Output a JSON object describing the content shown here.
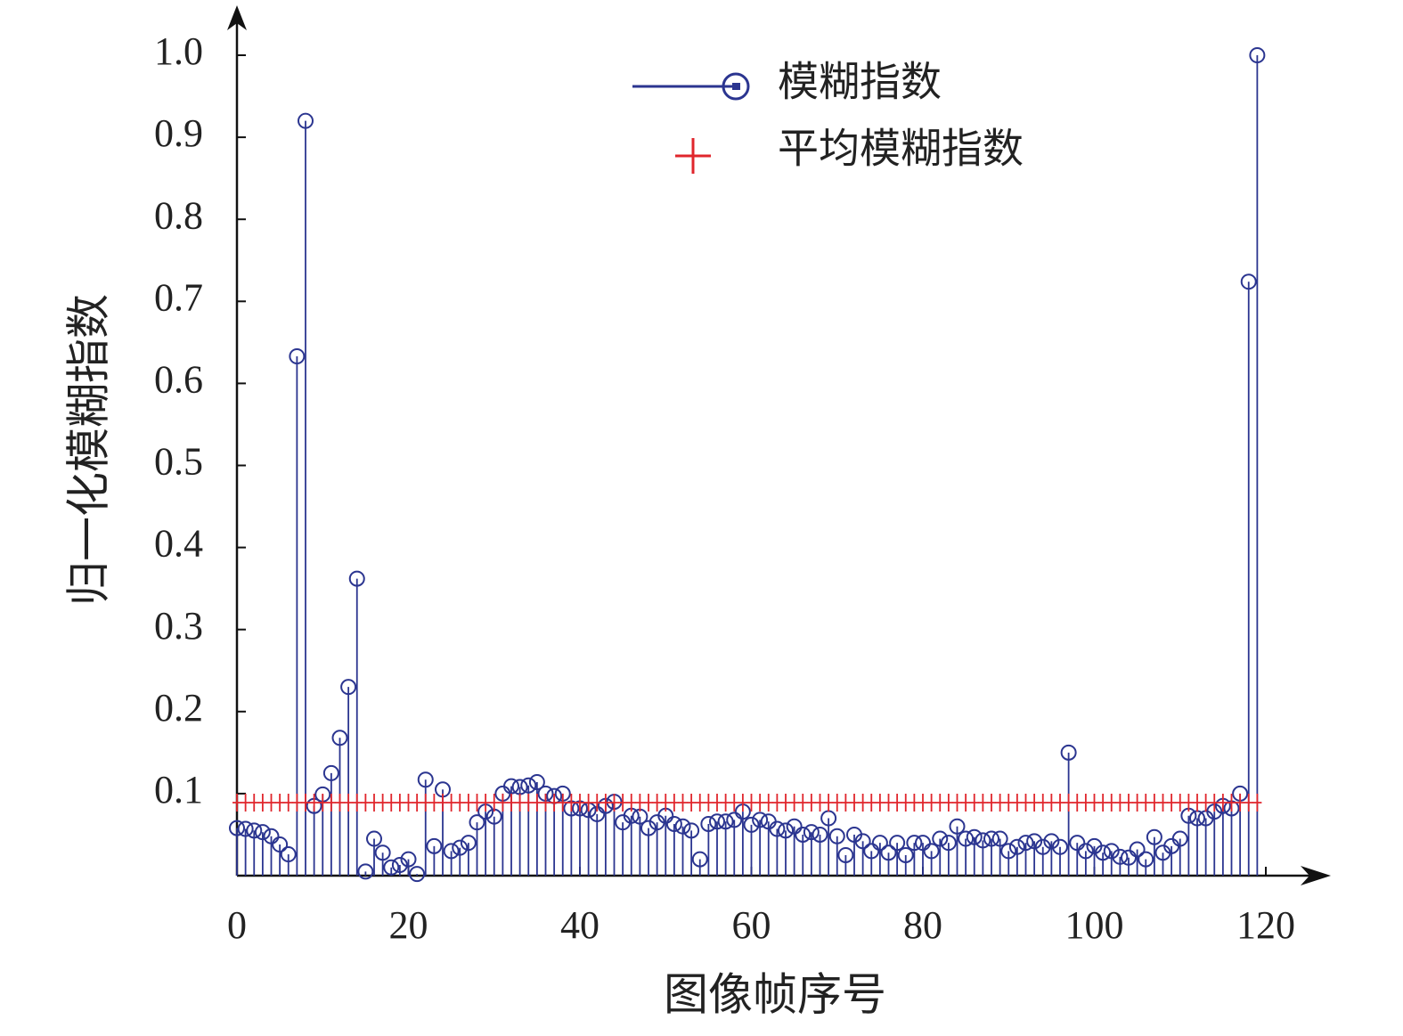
{
  "chart_data": {
    "type": "stem",
    "xlabel": "图像帧序号",
    "ylabel": "归一化模糊指数",
    "xlim": [
      0,
      120
    ],
    "ylim": [
      0,
      1
    ],
    "xticks": [
      0,
      20,
      40,
      60,
      80,
      100,
      120
    ],
    "yticks": [
      0.1,
      0.2,
      0.3,
      0.4,
      0.5,
      0.6,
      0.7,
      0.8,
      0.9,
      {
        "value": 1,
        "label": "1.0"
      }
    ],
    "series": [
      {
        "name": "模糊指数",
        "color": "#2b3590",
        "values": [
          0.058,
          0.057,
          0.055,
          0.053,
          0.048,
          0.038,
          0.026,
          0.633,
          0.92,
          0.085,
          0.099,
          0.125,
          0.168,
          0.23,
          0.362,
          0.005,
          0.045,
          0.028,
          0.01,
          0.013,
          0.02,
          0.002,
          0.117,
          0.036,
          0.105,
          0.03,
          0.034,
          0.04,
          0.065,
          0.078,
          0.072,
          0.1,
          0.109,
          0.108,
          0.11,
          0.114,
          0.1,
          0.097,
          0.1,
          0.082,
          0.082,
          0.08,
          0.075,
          0.085,
          0.09,
          0.065,
          0.073,
          0.072,
          0.058,
          0.065,
          0.073,
          0.063,
          0.06,
          0.055,
          0.02,
          0.063,
          0.066,
          0.066,
          0.068,
          0.078,
          0.062,
          0.068,
          0.066,
          0.057,
          0.055,
          0.06,
          0.05,
          0.053,
          0.05,
          0.07,
          0.048,
          0.025,
          0.05,
          0.042,
          0.03,
          0.04,
          0.028,
          0.04,
          0.025,
          0.04,
          0.04,
          0.03,
          0.045,
          0.04,
          0.06,
          0.045,
          0.047,
          0.043,
          0.045,
          0.045,
          0.03,
          0.035,
          0.04,
          0.042,
          0.035,
          0.042,
          0.035,
          0.15,
          0.04,
          0.03,
          0.036,
          0.028,
          0.03,
          0.023,
          0.022,
          0.032,
          0.02,
          0.047,
          0.028,
          0.036,
          0.045,
          0.073,
          0.07,
          0.07,
          0.078,
          0.085,
          0.082,
          0.1,
          0.724,
          1.0
        ]
      },
      {
        "name": "平均模糊指数",
        "color": "#e0262c",
        "value": 0.089
      }
    ]
  }
}
